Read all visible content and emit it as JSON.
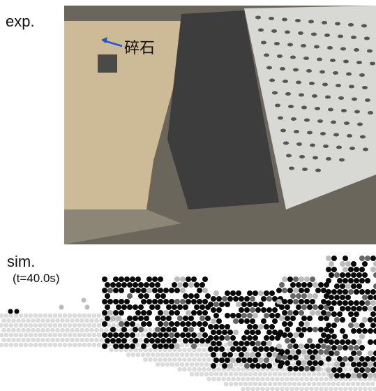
{
  "exp_panel": {
    "label": "exp.",
    "annotation": "碎石"
  },
  "sim_panel": {
    "label": "sim.",
    "time": "(t=40.0s)"
  }
}
